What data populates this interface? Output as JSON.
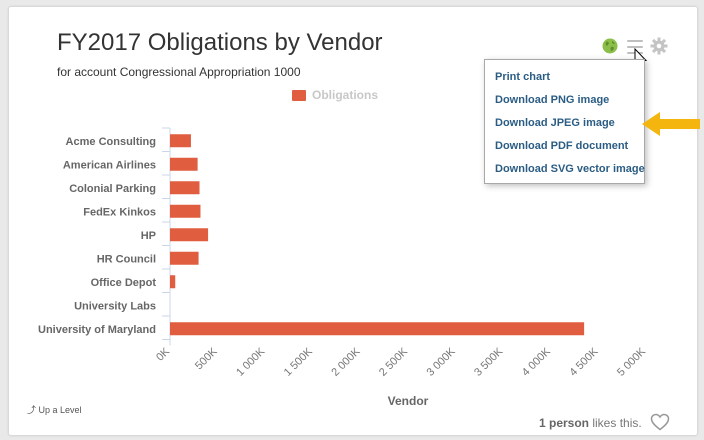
{
  "chart": {
    "title": "FY2017 Obligations by Vendor",
    "subtitle": "for account Congressional Appropriation 1000",
    "legend_label": "Obligations",
    "xlabel": "Vendor",
    "bar_color": "#e05d3f"
  },
  "chart_data": {
    "type": "bar",
    "orientation": "horizontal",
    "categories": [
      "Acme Consulting",
      "American Airlines",
      "Colonial Parking",
      "FedEx Kinkos",
      "HP",
      "HR Council",
      "Office Depot",
      "University Labs",
      "University of Maryland"
    ],
    "series": [
      {
        "name": "Obligations",
        "values": [
          220000,
          290000,
          310000,
          320000,
          400000,
          300000,
          55000,
          0,
          4350000
        ]
      }
    ],
    "x_ticks": [
      "0K",
      "500K",
      "1 000K",
      "1 500K",
      "2 000K",
      "2 500K",
      "3 000K",
      "3 500K",
      "4 000K",
      "4 500K",
      "5 000K"
    ],
    "xlim": [
      0,
      5000000
    ],
    "xlabel": "Vendor",
    "legend": "top-center",
    "grid": false
  },
  "toolbar": {
    "globe_icon": "globe-icon",
    "menu_icon": "hamburger-menu-icon",
    "settings_icon": "gear-icon"
  },
  "export_menu": {
    "items": [
      "Print chart",
      "Download PNG image",
      "Download JPEG image",
      "Download PDF document",
      "Download SVG vector image"
    ]
  },
  "footer": {
    "up_level": "Up a Level",
    "likes_count": "1 person",
    "likes_text": " likes this."
  },
  "colors": {
    "accent_arrow": "#f5b50f",
    "globe": "#8bbf4a",
    "menu_text": "#2b5d84"
  }
}
